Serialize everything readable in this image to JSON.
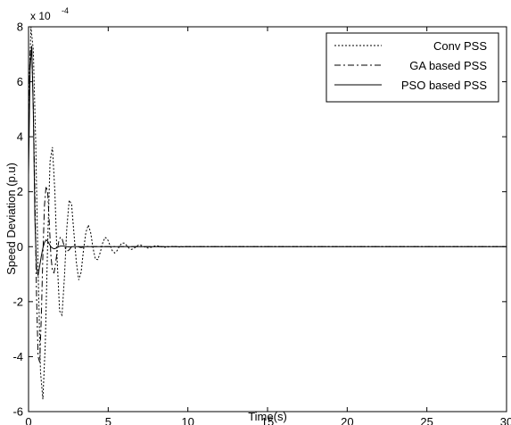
{
  "chart_data": {
    "type": "line",
    "title": "",
    "xlabel": "Time(s)",
    "ylabel": "Speed Deviation (p.u)",
    "xlim": [
      0,
      30
    ],
    "ylim": [
      -6,
      8
    ],
    "y_multiplier_label": "x 10",
    "y_multiplier_exponent": "-4",
    "x_ticks": [
      "0",
      "5",
      "10",
      "15",
      "20",
      "25",
      "30"
    ],
    "y_ticks": [
      "-6",
      "-4",
      "-2",
      "0",
      "2",
      "4",
      "6",
      "8"
    ],
    "grid": false,
    "legend_position": "top-right",
    "series": [
      {
        "name": "Conv PSS",
        "line_style": "dotted",
        "x": [
          0,
          0.15,
          0.3,
          0.45,
          0.6,
          0.75,
          0.9,
          1.05,
          1.2,
          1.35,
          1.5,
          1.65,
          1.8,
          1.95,
          2.1,
          2.25,
          2.4,
          2.55,
          2.7,
          2.85,
          3.0,
          3.15,
          3.3,
          3.45,
          3.6,
          3.75,
          3.9,
          4.05,
          4.2,
          4.35,
          4.5,
          4.65,
          4.8,
          4.95,
          5.1,
          5.25,
          5.4,
          5.55,
          5.7,
          5.85,
          6.0,
          6.15,
          6.3,
          6.45,
          6.6,
          6.75,
          6.9,
          7.05,
          7.2,
          7.35,
          7.5,
          7.65,
          7.8,
          7.95,
          8.1,
          8.25,
          8.4,
          8.55,
          8.7,
          8.85,
          9.0,
          9.15,
          9.3,
          9.45,
          9.6,
          9.75,
          9.9,
          12,
          30
        ],
        "values": [
          5.0,
          8.0,
          7.15,
          3.8,
          -0.83,
          -4.55,
          -5.55,
          -3.55,
          0.13,
          3.1,
          3.62,
          2.03,
          -0.53,
          -2.34,
          -2.49,
          -1.14,
          0.66,
          1.69,
          1.55,
          0.49,
          -0.56,
          -1.21,
          -0.93,
          -0.12,
          0.52,
          0.79,
          0.51,
          -0.06,
          -0.46,
          -0.47,
          -0.21,
          0.13,
          0.34,
          0.28,
          0.07,
          -0.14,
          -0.23,
          -0.15,
          0.01,
          0.13,
          0.13,
          0.05,
          -0.05,
          -0.1,
          -0.07,
          0.0,
          0.06,
          0.06,
          0.02,
          -0.03,
          -0.05,
          -0.03,
          0.0,
          0.03,
          0.03,
          0.01,
          -0.01,
          -0.02,
          -0.02,
          0.0,
          0.01,
          0.01,
          0.0,
          -0.01,
          -0.01,
          0.0,
          0.0,
          0,
          0
        ]
      },
      {
        "name": "GA based PSS",
        "line_style": "dash-dot",
        "x": [
          0,
          0.1,
          0.2,
          0.3,
          0.4,
          0.5,
          0.6,
          0.7,
          0.8,
          0.9,
          1.0,
          1.1,
          1.2,
          1.3,
          1.4,
          1.5,
          1.6,
          1.7,
          1.8,
          1.9,
          2.0,
          2.1,
          2.2,
          2.3,
          2.4,
          2.5,
          2.6,
          2.7,
          2.8,
          2.9,
          3.0,
          3.1,
          3.2,
          3.3,
          3.4,
          3.5,
          3.6,
          3.7,
          3.8,
          3.9,
          4.0,
          4.1,
          4.2,
          4.3,
          4.4,
          4.5,
          6,
          30
        ],
        "values": [
          4.5,
          7.1,
          7.3,
          5.1,
          1.8,
          -1.7,
          -4.0,
          -4.2,
          -2.6,
          -0.3,
          1.5,
          2.2,
          2.0,
          0.9,
          -0.3,
          -0.9,
          -0.95,
          -0.6,
          -0.15,
          0.2,
          0.35,
          0.3,
          0.1,
          -0.05,
          -0.15,
          -0.14,
          -0.08,
          0.0,
          0.05,
          0.06,
          0.04,
          0.01,
          -0.02,
          -0.03,
          -0.02,
          -0.01,
          0.0,
          0.01,
          0.01,
          0.0,
          0.0,
          0.0,
          0.0,
          0.0,
          0.0,
          0.0,
          0,
          0
        ]
      },
      {
        "name": "PSO based PSS",
        "line_style": "solid",
        "x": [
          0,
          0.1,
          0.2,
          0.3,
          0.4,
          0.5,
          0.6,
          0.7,
          0.8,
          0.9,
          1.0,
          1.1,
          1.2,
          1.3,
          1.4,
          1.5,
          1.6,
          1.7,
          1.8,
          1.9,
          2.0,
          2.2,
          2.4,
          2.6,
          2.8,
          3.0,
          3.5,
          30
        ],
        "values": [
          2.6,
          6.5,
          7.3,
          4.9,
          1.0,
          -0.8,
          -1.05,
          -0.7,
          -0.35,
          -0.05,
          0.15,
          0.25,
          0.2,
          0.1,
          0.0,
          -0.05,
          -0.08,
          -0.06,
          -0.03,
          0.0,
          0.02,
          0.02,
          0.0,
          -0.01,
          0.0,
          0.0,
          0.0,
          0.0
        ]
      }
    ]
  }
}
